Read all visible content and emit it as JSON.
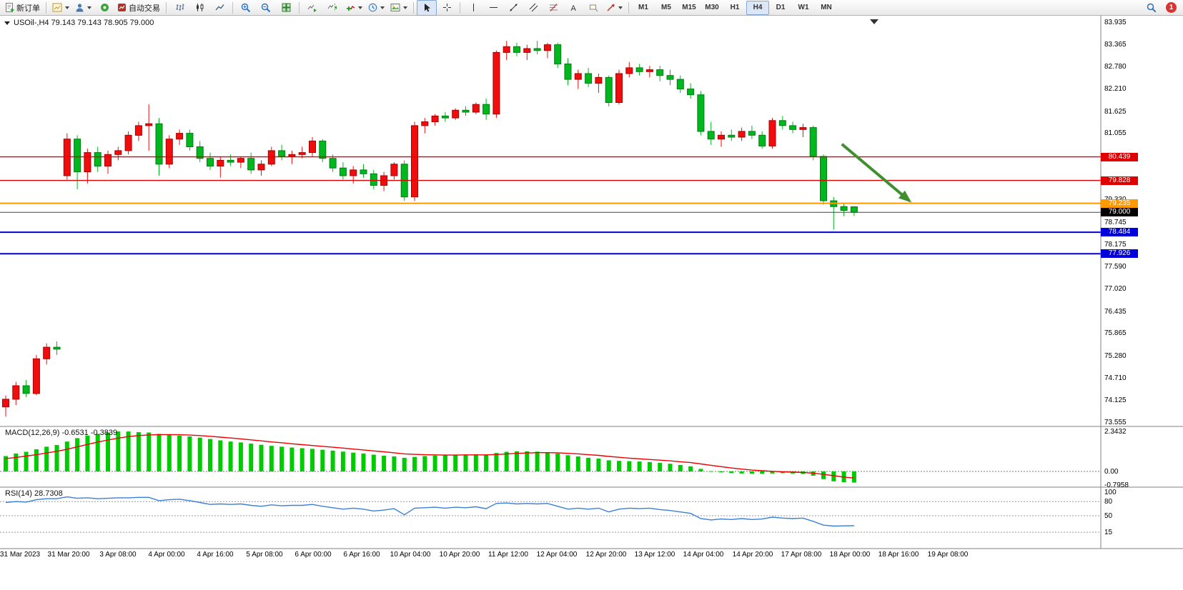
{
  "toolbar": {
    "new_order_label": "新订单",
    "autotrading_label": "自动交易",
    "timeframes": [
      "M1",
      "M5",
      "M15",
      "M30",
      "H1",
      "H4",
      "D1",
      "W1",
      "MN"
    ],
    "active_timeframe": "H4",
    "notification_count": "1"
  },
  "chart": {
    "title": "USOil-,H4 79.143 79.143 78.905 79.000",
    "symbol": "USOil-",
    "period": "H4",
    "ohlc": {
      "open": "79.143",
      "high": "79.143",
      "low": "78.905",
      "close": "79.000"
    }
  },
  "price_axis": {
    "labels": [
      "83.935",
      "83.365",
      "82.780",
      "82.210",
      "81.625",
      "81.055",
      "78.745",
      "78.175",
      "77.590",
      "77.020",
      "76.435",
      "75.865",
      "75.280",
      "74.710",
      "74.125",
      "73.555"
    ],
    "partial_label": {
      "text": "79.330",
      "price": 79.33
    },
    "badges": [
      {
        "value": "80.439",
        "price": 80.439,
        "bg": "#e00000",
        "fg": "#ffffff"
      },
      {
        "value": "79.828",
        "price": 79.828,
        "bg": "#e00000",
        "fg": "#ffffff"
      },
      {
        "value": "79.235",
        "price": 79.235,
        "bg": "#ff9900",
        "fg": "#ffffff"
      },
      {
        "value": "79.000",
        "price": 79.0,
        "bg": "#000000",
        "fg": "#ffffff"
      },
      {
        "value": "78.484",
        "price": 78.484,
        "bg": "#0000dd",
        "fg": "#ffffff"
      },
      {
        "value": "77.926",
        "price": 77.926,
        "bg": "#0000dd",
        "fg": "#ffffff"
      }
    ]
  },
  "time_axis": {
    "labels": [
      "31 Mar 2023",
      "31 Mar 20:00",
      "3 Apr 08:00",
      "4 Apr 00:00",
      "4 Apr 16:00",
      "5 Apr 08:00",
      "6 Apr 00:00",
      "6 Apr 16:00",
      "10 Apr 04:00",
      "10 Apr 20:00",
      "11 Apr 12:00",
      "12 Apr 04:00",
      "12 Apr 20:00",
      "13 Apr 12:00",
      "14 Apr 04:00",
      "14 Apr 20:00",
      "17 Apr 08:00",
      "18 Apr 00:00",
      "18 Apr 16:00",
      "19 Apr 08:00"
    ]
  },
  "macd": {
    "label": "MACD(12,26,9) -0.6531 -0.3839",
    "axis_labels": [
      "2.3432",
      "0.00",
      "-0.7958"
    ]
  },
  "rsi": {
    "label": "RSI(14) 28.7308",
    "axis_labels": [
      "100",
      "80",
      "50",
      "15"
    ]
  },
  "colors": {
    "up": "#f00d0d",
    "up_border": "#a80000",
    "down": "#00b81e",
    "down_border": "#007e12",
    "macd_bar": "#00ca00",
    "macd_signal": "#ee0000",
    "rsi_line": "#3c7fd6",
    "separator": "#808080",
    "current_price_line": "#444444"
  },
  "chart_data": {
    "type": "candlestick+indicators",
    "symbol": "USOil-",
    "timeframe": "H4",
    "title": "USOil-,H4",
    "ylim": [
      73.555,
      83.935
    ],
    "grid": false,
    "current_price": 79.0,
    "hlines": [
      {
        "price": 80.439,
        "color": "#e00000",
        "width": 1.4
      },
      {
        "price": 79.828,
        "color": "#e00000",
        "width": 1.4
      },
      {
        "price": 79.235,
        "color": "#ff9900",
        "width": 2
      },
      {
        "price": 78.484,
        "color": "#0000dd",
        "width": 2
      },
      {
        "price": 77.926,
        "color": "#0000dd",
        "width": 2
      }
    ],
    "arrow": {
      "from": {
        "i": 81.8,
        "p": 80.77
      },
      "to": {
        "i": 88.4,
        "p": 79.3
      },
      "color": "#3f8f2f"
    },
    "candles": [
      [
        73.95,
        74.25,
        73.7,
        74.15
      ],
      [
        74.15,
        74.6,
        74.0,
        74.5
      ],
      [
        74.5,
        74.65,
        74.2,
        74.3
      ],
      [
        74.3,
        75.3,
        74.25,
        75.2
      ],
      [
        75.2,
        75.6,
        75.05,
        75.5
      ],
      [
        75.5,
        75.65,
        75.3,
        75.45
      ],
      [
        79.95,
        81.05,
        79.85,
        80.9
      ],
      [
        80.9,
        81.0,
        79.6,
        80.05
      ],
      [
        80.05,
        80.65,
        79.75,
        80.55
      ],
      [
        80.55,
        80.7,
        80.05,
        80.2
      ],
      [
        80.2,
        80.6,
        80.0,
        80.5
      ],
      [
        80.5,
        80.7,
        80.35,
        80.6
      ],
      [
        80.6,
        81.1,
        80.5,
        81.0
      ],
      [
        81.0,
        81.35,
        80.85,
        81.25
      ],
      [
        81.25,
        81.8,
        80.6,
        81.3
      ],
      [
        81.3,
        81.45,
        79.95,
        80.25
      ],
      [
        80.25,
        81.0,
        80.15,
        80.9
      ],
      [
        80.9,
        81.15,
        80.75,
        81.05
      ],
      [
        81.05,
        81.15,
        80.6,
        80.7
      ],
      [
        80.7,
        80.85,
        80.3,
        80.4
      ],
      [
        80.4,
        80.55,
        80.1,
        80.2
      ],
      [
        80.2,
        80.45,
        79.9,
        80.35
      ],
      [
        80.35,
        80.5,
        80.2,
        80.3
      ],
      [
        80.3,
        80.45,
        80.15,
        80.4
      ],
      [
        80.4,
        80.55,
        80.0,
        80.1
      ],
      [
        80.1,
        80.35,
        79.95,
        80.25
      ],
      [
        80.25,
        80.7,
        80.2,
        80.6
      ],
      [
        80.6,
        80.75,
        80.35,
        80.45
      ],
      [
        80.45,
        80.6,
        80.25,
        80.5
      ],
      [
        80.5,
        80.7,
        80.4,
        80.55
      ],
      [
        80.55,
        80.95,
        80.45,
        80.85
      ],
      [
        80.85,
        80.9,
        80.3,
        80.4
      ],
      [
        80.4,
        80.5,
        80.05,
        80.15
      ],
      [
        80.15,
        80.3,
        79.85,
        79.95
      ],
      [
        79.95,
        80.2,
        79.75,
        80.1
      ],
      [
        80.1,
        80.25,
        79.9,
        80.0
      ],
      [
        80.0,
        80.1,
        79.6,
        79.7
      ],
      [
        79.7,
        80.05,
        79.55,
        79.95
      ],
      [
        79.95,
        80.3,
        79.85,
        80.25
      ],
      [
        80.25,
        80.35,
        79.3,
        79.4
      ],
      [
        79.4,
        81.35,
        79.3,
        81.25
      ],
      [
        81.25,
        81.45,
        81.05,
        81.35
      ],
      [
        81.35,
        81.55,
        81.25,
        81.5
      ],
      [
        81.5,
        81.6,
        81.35,
        81.45
      ],
      [
        81.45,
        81.7,
        81.4,
        81.65
      ],
      [
        81.65,
        81.75,
        81.5,
        81.6
      ],
      [
        81.6,
        81.85,
        81.55,
        81.8
      ],
      [
        81.8,
        81.95,
        81.4,
        81.55
      ],
      [
        81.55,
        83.2,
        81.45,
        83.15
      ],
      [
        83.15,
        83.45,
        82.95,
        83.3
      ],
      [
        83.3,
        83.4,
        83.05,
        83.15
      ],
      [
        83.15,
        83.35,
        82.95,
        83.25
      ],
      [
        83.25,
        83.45,
        83.1,
        83.2
      ],
      [
        83.2,
        83.4,
        83.0,
        83.35
      ],
      [
        83.35,
        83.4,
        82.75,
        82.85
      ],
      [
        82.85,
        83.0,
        82.3,
        82.45
      ],
      [
        82.45,
        82.7,
        82.2,
        82.6
      ],
      [
        82.6,
        82.75,
        82.25,
        82.35
      ],
      [
        82.35,
        82.6,
        82.1,
        82.5
      ],
      [
        82.5,
        82.55,
        81.75,
        81.85
      ],
      [
        81.85,
        82.7,
        81.8,
        82.6
      ],
      [
        82.6,
        82.9,
        82.5,
        82.75
      ],
      [
        82.75,
        82.85,
        82.55,
        82.65
      ],
      [
        82.65,
        82.8,
        82.5,
        82.7
      ],
      [
        82.7,
        82.8,
        82.4,
        82.55
      ],
      [
        82.55,
        82.7,
        82.3,
        82.45
      ],
      [
        82.45,
        82.55,
        82.1,
        82.2
      ],
      [
        82.2,
        82.35,
        81.95,
        82.05
      ],
      [
        82.05,
        82.15,
        81.0,
        81.1
      ],
      [
        81.1,
        81.35,
        80.75,
        80.9
      ],
      [
        80.9,
        81.1,
        80.7,
        81.0
      ],
      [
        81.0,
        81.15,
        80.85,
        80.95
      ],
      [
        80.95,
        81.2,
        80.85,
        81.1
      ],
      [
        81.1,
        81.25,
        80.9,
        81.0
      ],
      [
        81.0,
        81.1,
        80.65,
        80.72
      ],
      [
        80.72,
        81.45,
        80.65,
        81.38
      ],
      [
        81.38,
        81.5,
        81.15,
        81.25
      ],
      [
        81.25,
        81.35,
        81.05,
        81.15
      ],
      [
        81.15,
        81.3,
        80.95,
        81.2
      ],
      [
        81.2,
        81.25,
        80.35,
        80.45
      ],
      [
        80.45,
        80.5,
        79.2,
        79.3
      ],
      [
        79.3,
        79.4,
        78.55,
        79.15
      ],
      [
        79.15,
        79.25,
        78.9,
        79.05
      ],
      [
        79.143,
        79.143,
        78.905,
        79.0
      ]
    ],
    "macd": {
      "range": [
        -0.7958,
        2.3432
      ],
      "values": [
        0.9,
        1.05,
        1.15,
        1.3,
        1.45,
        1.55,
        1.75,
        1.95,
        2.1,
        2.2,
        2.28,
        2.34,
        2.34,
        2.3,
        2.28,
        2.2,
        2.15,
        2.1,
        2.05,
        1.98,
        1.9,
        1.82,
        1.75,
        1.7,
        1.63,
        1.56,
        1.5,
        1.45,
        1.4,
        1.36,
        1.32,
        1.27,
        1.22,
        1.16,
        1.1,
        1.05,
        0.98,
        0.92,
        0.88,
        0.8,
        0.85,
        0.9,
        0.93,
        0.95,
        0.97,
        0.98,
        1.0,
        0.98,
        1.08,
        1.15,
        1.18,
        1.18,
        1.16,
        1.12,
        1.05,
        0.95,
        0.88,
        0.8,
        0.75,
        0.65,
        0.62,
        0.6,
        0.58,
        0.55,
        0.5,
        0.45,
        0.38,
        0.3,
        0.15,
        0.02,
        -0.05,
        -0.1,
        -0.12,
        -0.13,
        -0.14,
        -0.12,
        -0.1,
        -0.12,
        -0.15,
        -0.25,
        -0.45,
        -0.58,
        -0.63,
        -0.6531
      ],
      "signal": [
        0.75,
        0.82,
        0.9,
        0.98,
        1.08,
        1.18,
        1.3,
        1.44,
        1.58,
        1.72,
        1.84,
        1.95,
        2.04,
        2.1,
        2.14,
        2.16,
        2.16,
        2.15,
        2.13,
        2.1,
        2.06,
        2.01,
        1.96,
        1.91,
        1.85,
        1.79,
        1.73,
        1.68,
        1.62,
        1.57,
        1.52,
        1.47,
        1.42,
        1.37,
        1.31,
        1.26,
        1.2,
        1.15,
        1.09,
        1.03,
        1.0,
        0.98,
        0.97,
        0.96,
        0.96,
        0.97,
        0.97,
        0.97,
        0.99,
        1.02,
        1.06,
        1.08,
        1.1,
        1.1,
        1.09,
        1.06,
        1.03,
        0.98,
        0.94,
        0.88,
        0.83,
        0.78,
        0.74,
        0.7,
        0.66,
        0.62,
        0.57,
        0.52,
        0.44,
        0.36,
        0.28,
        0.2,
        0.14,
        0.08,
        0.04,
        0.01,
        -0.02,
        -0.04,
        -0.06,
        -0.1,
        -0.17,
        -0.25,
        -0.33,
        -0.3839
      ]
    },
    "rsi": {
      "range": [
        0,
        100
      ],
      "levels": [
        80,
        50,
        15
      ],
      "current": 28.7308,
      "values": [
        78,
        80,
        79,
        84,
        86,
        86,
        90,
        87,
        88,
        86,
        87,
        88,
        88,
        89,
        89,
        82,
        84,
        85,
        82,
        78,
        74,
        75,
        74,
        75,
        72,
        70,
        73,
        71,
        72,
        72,
        74,
        70,
        67,
        64,
        66,
        64,
        60,
        62,
        65,
        52,
        66,
        67,
        68,
        66,
        68,
        67,
        69,
        65,
        76,
        77,
        75,
        76,
        75,
        76,
        70,
        64,
        66,
        64,
        66,
        58,
        64,
        66,
        65,
        66,
        63,
        61,
        58,
        55,
        44,
        41,
        43,
        42,
        44,
        42,
        43,
        47,
        45,
        44,
        45,
        38,
        30,
        28,
        28.5,
        28.7308
      ]
    }
  }
}
